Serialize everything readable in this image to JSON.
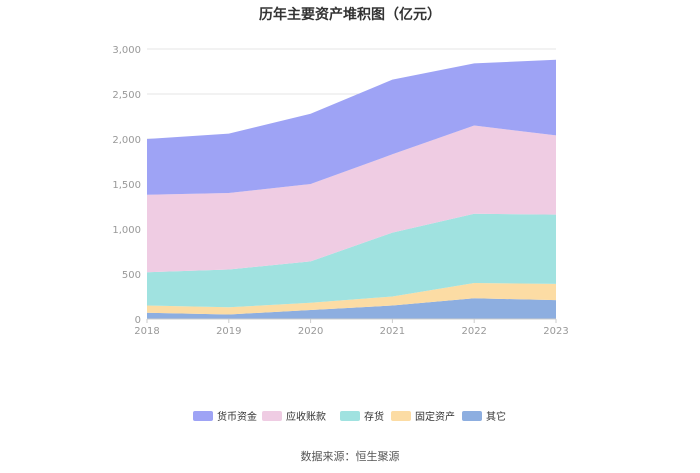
{
  "chart_data": {
    "type": "area",
    "stacked": true,
    "title": "历年主要资产堆积图（亿元）",
    "categories": [
      "2018",
      "2019",
      "2020",
      "2021",
      "2022",
      "2023"
    ],
    "y_ticks": [
      "0",
      "500",
      "1,000",
      "1,500",
      "2,000",
      "2,500",
      "3,000"
    ],
    "ylim": [
      0,
      3000
    ],
    "grid": true,
    "legend_position": "bottom",
    "series": [
      {
        "name": "其它",
        "color": "#8daee0",
        "values": [
          70,
          50,
          100,
          150,
          230,
          210
        ]
      },
      {
        "name": "固定资产",
        "color": "#fcdca4",
        "values": [
          80,
          80,
          80,
          100,
          170,
          180
        ]
      },
      {
        "name": "存货",
        "color": "#a0e2e0",
        "values": [
          370,
          420,
          460,
          710,
          770,
          770
        ]
      },
      {
        "name": "应收账款",
        "color": "#efcce3",
        "values": [
          860,
          850,
          860,
          870,
          980,
          880
        ]
      },
      {
        "name": "货币资金",
        "color": "#9ea3f5",
        "values": [
          620,
          660,
          780,
          830,
          690,
          840
        ]
      }
    ],
    "legend_order": [
      "货币资金",
      "应收账款",
      "存货",
      "固定资产",
      "其它"
    ],
    "source": "数据来源：恒生聚源"
  }
}
